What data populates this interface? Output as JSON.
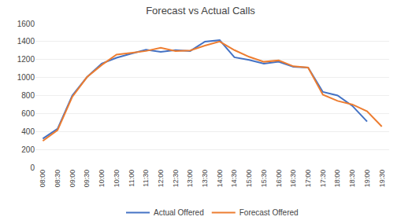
{
  "chart_data": {
    "type": "line",
    "title": "Forecast vs Actual Calls",
    "categories": [
      "08:00",
      "08:30",
      "09:00",
      "09:30",
      "10:00",
      "10:30",
      "11:00",
      "11:30",
      "12:00",
      "12:30",
      "13:00",
      "13:30",
      "14:00",
      "14:30",
      "15:00",
      "15:30",
      "16:00",
      "16:30",
      "17:00",
      "17:30",
      "18:00",
      "18:30",
      "19:00",
      "19:30"
    ],
    "series": [
      {
        "name": "Actual Offered",
        "color": "#4472C4",
        "values": [
          320,
          430,
          800,
          1005,
          1155,
          1220,
          1265,
          1310,
          1285,
          1305,
          1295,
          1400,
          1415,
          1225,
          1195,
          1155,
          1175,
          1120,
          1110,
          840,
          800,
          685,
          510,
          null
        ]
      },
      {
        "name": "Forecast Offered",
        "color": "#ED7D31",
        "values": [
          295,
          415,
          785,
          1005,
          1140,
          1255,
          1275,
          1295,
          1330,
          1295,
          1300,
          1355,
          1400,
          1305,
          1230,
          1175,
          1190,
          1125,
          1110,
          810,
          740,
          700,
          625,
          455
        ]
      }
    ],
    "ylim": [
      0,
      1600
    ],
    "yticks": [
      0,
      200,
      400,
      600,
      800,
      1000,
      1200,
      1400,
      1600
    ],
    "grid": true,
    "legend": "bottom"
  }
}
